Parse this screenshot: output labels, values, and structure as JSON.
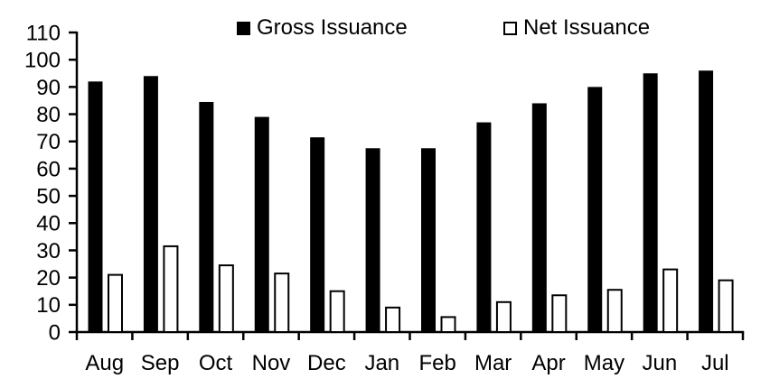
{
  "chart_data": {
    "type": "bar",
    "title": "",
    "xlabel": "",
    "ylabel": "",
    "categories": [
      "Aug",
      "Sep",
      "Oct",
      "Nov",
      "Dec",
      "Jan",
      "Feb",
      "Mar",
      "Apr",
      "May",
      "Jun",
      "Jul"
    ],
    "series": [
      {
        "name": "Gross Issuance",
        "fill": "#000000",
        "stroke": "#000000",
        "values": [
          92,
          94,
          84.5,
          79,
          71.5,
          67.5,
          67.5,
          77,
          84,
          90,
          95,
          96
        ]
      },
      {
        "name": "Net Issuance",
        "fill": "#ffffff",
        "stroke": "#000000",
        "values": [
          21,
          31.5,
          24.5,
          21.5,
          15,
          9,
          5.5,
          11,
          13.5,
          15.5,
          23,
          19
        ]
      }
    ],
    "ylim": [
      0,
      110
    ],
    "ytick_step": 10,
    "ytick_labels": [
      "0",
      "10",
      "20",
      "30",
      "40",
      "50",
      "60",
      "70",
      "80",
      "90",
      "100",
      "110"
    ],
    "grid": false,
    "legend_position": "top",
    "axis_color": "#000000",
    "text_color": "#000000",
    "background": "#ffffff"
  }
}
